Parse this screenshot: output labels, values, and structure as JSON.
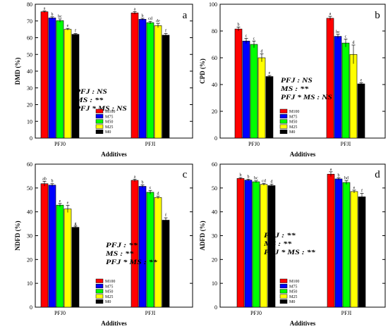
{
  "chart_data": [
    {
      "type": "bar",
      "panel_letter": "a",
      "categories": [
        "PFJ0",
        "PFJI"
      ],
      "xlabel": "Additives",
      "ylabel": "DMD (%)",
      "ylim": [
        0,
        80
      ],
      "yticks": [
        0,
        10,
        20,
        30,
        40,
        50,
        60,
        70,
        80
      ],
      "series": [
        {
          "name": "M100",
          "values": [
            75.5,
            74.8
          ],
          "errors": [
            0.5,
            0.8
          ],
          "letters": [
            "a",
            "a"
          ]
        },
        {
          "name": "M75",
          "values": [
            71.8,
            71.0
          ],
          "errors": [
            0.7,
            0.6
          ],
          "letters": [
            "b",
            "b"
          ]
        },
        {
          "name": "M50",
          "values": [
            70.2,
            69.0
          ],
          "errors": [
            1.0,
            0.8
          ],
          "letters": [
            "bc",
            "cd"
          ]
        },
        {
          "name": "M25",
          "values": [
            65.0,
            67.2
          ],
          "errors": [
            0.6,
            1.2
          ],
          "letters": [
            "e",
            "de"
          ]
        },
        {
          "name": "M0",
          "values": [
            62.0,
            61.5
          ],
          "errors": [
            0.5,
            1.0
          ],
          "letters": [
            "f",
            "f"
          ]
        }
      ],
      "stats": [
        "PFJ : NS",
        "MS : **",
        "PFJ * MS : NS"
      ],
      "legend_position": "lower-right"
    },
    {
      "type": "bar",
      "panel_letter": "b",
      "categories": [
        "PFJ0",
        "PFJI"
      ],
      "xlabel": "Additives",
      "ylabel": "CPD (%)",
      "ylim": [
        0,
        100
      ],
      "yticks": [
        0,
        20,
        40,
        60,
        80,
        100
      ],
      "series": [
        {
          "name": "M100",
          "values": [
            81.5,
            89.5
          ],
          "errors": [
            1.5,
            1.5
          ],
          "letters": [
            "b",
            "a"
          ]
        },
        {
          "name": "M75",
          "values": [
            72.5,
            76.0
          ],
          "errors": [
            2.0,
            1.5
          ],
          "letters": [
            "c",
            "bc"
          ]
        },
        {
          "name": "M50",
          "values": [
            70.0,
            71.0
          ],
          "errors": [
            2.5,
            3.0
          ],
          "letters": [
            "c",
            "c"
          ]
        },
        {
          "name": "M25",
          "values": [
            60.0,
            62.5
          ],
          "errors": [
            3.0,
            7.0
          ],
          "letters": [
            "d",
            "d"
          ]
        },
        {
          "name": "M0",
          "values": [
            46.0,
            40.5
          ],
          "errors": [
            0.8,
            0.8
          ],
          "letters": [
            "e",
            "e"
          ]
        }
      ],
      "stats": [
        "PFJ : NS",
        "MS : **",
        "PFJ * MS : NS"
      ],
      "legend_position": "lower-right"
    },
    {
      "type": "bar",
      "panel_letter": "c",
      "categories": [
        "PFJ0",
        "PFJI"
      ],
      "xlabel": "Additives",
      "ylabel": "NDFD (%)",
      "ylim": [
        0,
        60
      ],
      "yticks": [
        0,
        10,
        20,
        30,
        40,
        50,
        60
      ],
      "series": [
        {
          "name": "M100",
          "values": [
            51.8,
            53.2
          ],
          "errors": [
            1.0,
            0.5
          ],
          "letters": [
            "ab",
            "a"
          ]
        },
        {
          "name": "M75",
          "values": [
            51.2,
            50.7
          ],
          "errors": [
            0.6,
            0.6
          ],
          "letters": [
            "b",
            "b"
          ]
        },
        {
          "name": "M50",
          "values": [
            42.8,
            48.2
          ],
          "errors": [
            0.7,
            0.8
          ],
          "letters": [
            "e",
            "c"
          ]
        },
        {
          "name": "M25",
          "values": [
            41.2,
            46.0
          ],
          "errors": [
            1.5,
            0.5
          ],
          "letters": [
            "e",
            "d"
          ]
        },
        {
          "name": "M0",
          "values": [
            33.5,
            36.5
          ],
          "errors": [
            0.5,
            1.0
          ],
          "letters": [
            "g",
            "f"
          ]
        }
      ],
      "stats": [
        "PFJ : **",
        "MS : **",
        "PFJ * MS : **"
      ],
      "legend_position": "lower-right"
    },
    {
      "type": "bar",
      "panel_letter": "d",
      "categories": [
        "PFJ0",
        "PFJI"
      ],
      "xlabel": "Additives",
      "ylabel": "ADFD (%)",
      "ylim": [
        0,
        60
      ],
      "yticks": [
        0,
        10,
        20,
        30,
        40,
        50,
        60
      ],
      "series": [
        {
          "name": "M100",
          "values": [
            54.0,
            55.8
          ],
          "errors": [
            0.4,
            1.0
          ],
          "letters": [
            "b",
            "a"
          ]
        },
        {
          "name": "M75",
          "values": [
            53.3,
            53.8
          ],
          "errors": [
            0.4,
            0.5
          ],
          "letters": [
            "b",
            "b"
          ]
        },
        {
          "name": "M50",
          "values": [
            52.6,
            52.3
          ],
          "errors": [
            0.4,
            0.8
          ],
          "letters": [
            "bc",
            "bd"
          ]
        },
        {
          "name": "M25",
          "values": [
            51.5,
            48.5
          ],
          "errors": [
            0.4,
            0.6
          ],
          "letters": [
            "cd",
            "e"
          ]
        },
        {
          "name": "M0",
          "values": [
            51.0,
            46.3
          ],
          "errors": [
            0.6,
            1.4
          ],
          "letters": [
            "d",
            "f"
          ]
        }
      ],
      "stats": [
        "PFJ : **",
        "MS : **",
        "PFJ * MS : **"
      ],
      "legend_position": "lower-right"
    }
  ],
  "series_colors": [
    "#ff0000",
    "#0000ff",
    "#00ff00",
    "#ffff00",
    "#000000"
  ]
}
